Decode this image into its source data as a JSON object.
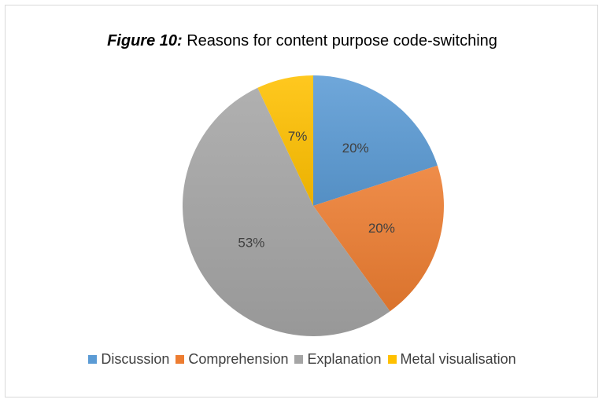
{
  "chart_data": {
    "type": "pie",
    "title_prefix": "Figure 10:",
    "title": "Reasons for content purpose code-switching",
    "categories": [
      "Discussion",
      "Comprehension",
      "Explanation",
      "Metal visualisation"
    ],
    "values": [
      20,
      20,
      53,
      7
    ],
    "data_labels": [
      "20%",
      "20%",
      "53%",
      "7%"
    ],
    "colors": [
      "#5b9bd5",
      "#ed7d31",
      "#a5a5a5",
      "#ffc000"
    ],
    "legend_position": "bottom"
  }
}
